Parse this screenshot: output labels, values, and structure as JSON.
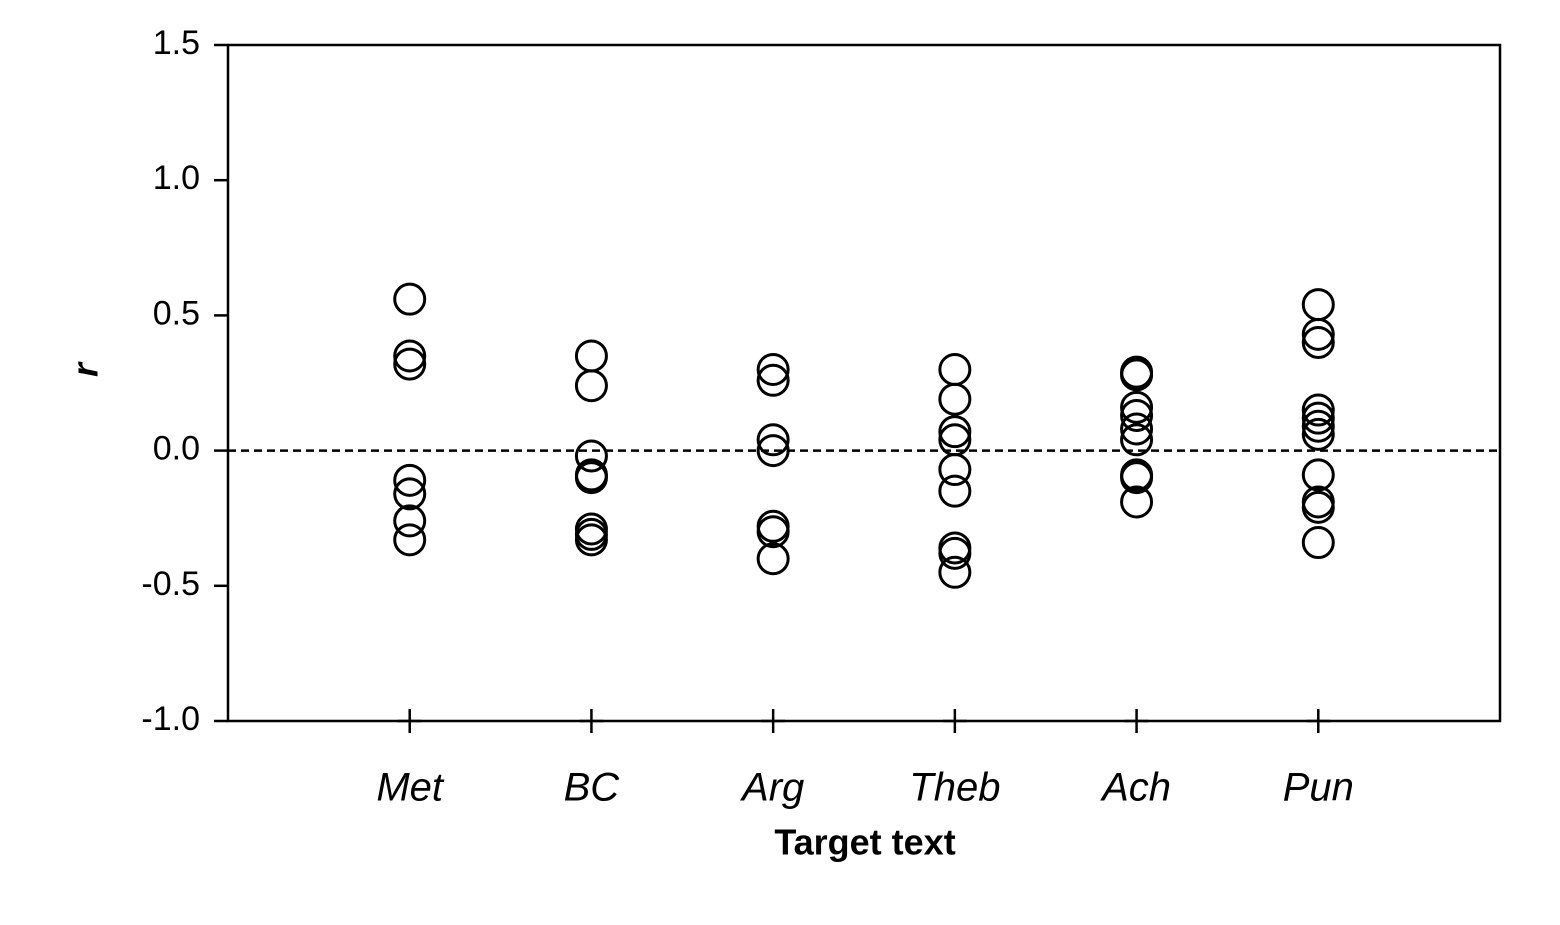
{
  "chart_data": {
    "type": "strip",
    "x_label": "Target text",
    "y_label": "r",
    "categories": [
      "Met",
      "BC",
      "Arg",
      "Theb",
      "Ach",
      "Pun"
    ],
    "values": [
      [
        0.56,
        0.35,
        0.32,
        -0.11,
        -0.16,
        -0.26,
        -0.33
      ],
      [
        0.35,
        0.24,
        -0.02,
        -0.09,
        -0.1,
        -0.29,
        -0.31,
        -0.33
      ],
      [
        0.3,
        0.26,
        0.04,
        0.0,
        -0.28,
        -0.3,
        -0.4
      ],
      [
        0.3,
        0.19,
        0.07,
        0.04,
        -0.07,
        -0.15,
        -0.36,
        -0.38,
        -0.45
      ],
      [
        0.29,
        0.28,
        0.16,
        0.13,
        0.08,
        0.04,
        -0.09,
        -0.1,
        -0.19
      ],
      [
        0.54,
        0.43,
        0.4,
        0.15,
        0.12,
        0.09,
        0.06,
        -0.09,
        -0.19,
        -0.21,
        -0.34
      ]
    ],
    "color": "#000000",
    "ylim": [
      -1.0,
      1.5
    ],
    "yticks": [
      {
        "value": -1.0,
        "label": "-1.0"
      },
      -0.5,
      {
        "value": 0.0,
        "label": "0.0"
      },
      0.5,
      {
        "value": 1.0,
        "label": "1.0"
      },
      1.5
    ],
    "reference_line": 0,
    "grid": false
  }
}
